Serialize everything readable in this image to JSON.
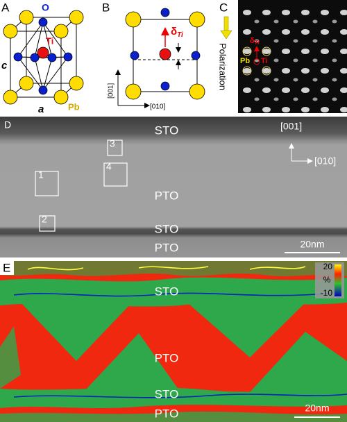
{
  "panels": {
    "a": {
      "label": "A",
      "oxygen": "O",
      "titanium": "Ti",
      "lead": "Pb",
      "axis_c": "c",
      "axis_a": "a"
    },
    "b": {
      "label": "B",
      "displacement": {
        "symbol": "δ",
        "subscript": "Ti"
      },
      "axis_vertical": "[001]",
      "axis_horizontal": "[010]"
    },
    "c": {
      "label": "C",
      "polarization": "Polarization",
      "displacement": {
        "symbol": "δ",
        "subscript": "Ti"
      },
      "lead": "Pb",
      "titanium": "Ti"
    },
    "d": {
      "label": "D",
      "layers": [
        "STO",
        "PTO",
        "STO",
        "PTO"
      ],
      "axis_vertical": "[001]",
      "axis_horizontal": "[010]",
      "boxes": [
        1,
        2,
        3,
        4
      ],
      "scale_bar": "20nm"
    },
    "e": {
      "label": "E",
      "layers": [
        "STO",
        "PTO",
        "STO",
        "PTO"
      ],
      "colorbar": {
        "max": 20,
        "unit": "%",
        "min": -10
      },
      "scale_bar": "20nm"
    }
  }
}
